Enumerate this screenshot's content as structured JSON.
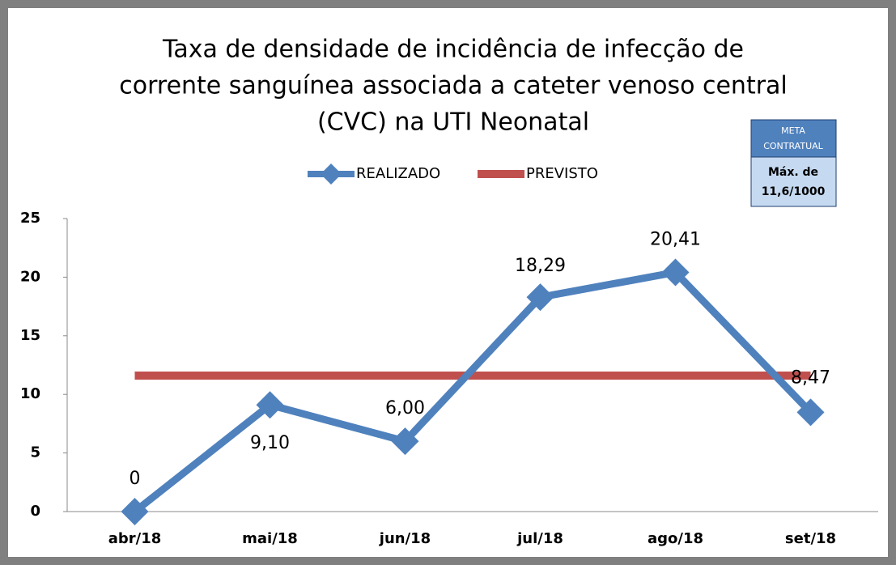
{
  "chart_data": {
    "type": "line",
    "title": [
      "Taxa de densidade de incidência de infecção de",
      "corrente sanguínea associada a cateter venoso central",
      "(CVC) na UTI Neonatal"
    ],
    "categories": [
      "abr/18",
      "mai/18",
      "jun/18",
      "jul/18",
      "ago/18",
      "set/18"
    ],
    "series": [
      {
        "name": "REALIZADO",
        "color": "#4f81bd",
        "values": [
          0,
          9.1,
          6,
          18.29,
          20.41,
          8.47
        ],
        "value_labels": [
          "0",
          "9,10",
          "6,00",
          "18,29",
          "20,41",
          "8,47"
        ],
        "marker": "diamond"
      },
      {
        "name": "PREVISTO",
        "color": "#c0504d",
        "values": [
          11.6,
          11.6,
          11.6,
          11.6,
          11.6,
          11.6
        ]
      }
    ],
    "ylim": [
      0,
      25
    ],
    "yticks": [
      0,
      5,
      10,
      15,
      20,
      25
    ],
    "legend": "top",
    "annotation": {
      "header": [
        "META",
        "CONTRATUAL"
      ],
      "body": [
        "Máx. de",
        "11,6/1000"
      ]
    }
  }
}
